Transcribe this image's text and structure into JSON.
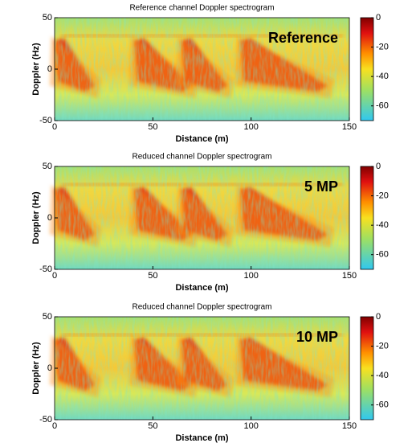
{
  "chart_data": [
    {
      "type": "heatmap",
      "title": "Reference channel Doppler spectrogram",
      "annotation": "Reference",
      "xlabel": "Distance (m)",
      "ylabel": "Doppler (Hz)",
      "xlim": [
        0,
        150
      ],
      "xticks": [
        0,
        50,
        100,
        150
      ],
      "ylim": [
        -50,
        50
      ],
      "yticks": [
        -50,
        0,
        50
      ],
      "clim": [
        -70,
        0
      ],
      "cticks": [
        0,
        -20,
        -40,
        -60
      ],
      "colormap": "jet"
    },
    {
      "type": "heatmap",
      "title": "Reduced channel Doppler spectrogram",
      "annotation": "5 MP",
      "xlabel": "Distance (m)",
      "ylabel": "Doppler (Hz)",
      "xlim": [
        0,
        150
      ],
      "xticks": [
        0,
        50,
        100,
        150
      ],
      "ylim": [
        -50,
        50
      ],
      "yticks": [
        -50,
        0,
        50
      ],
      "clim": [
        -70,
        0
      ],
      "cticks": [
        0,
        -20,
        -40,
        -60
      ],
      "colormap": "jet"
    },
    {
      "type": "heatmap",
      "title": "Reduced channel Doppler spectrogram",
      "annotation": "10 MP",
      "xlabel": "Distance (m)",
      "ylabel": "Doppler (Hz)",
      "xlim": [
        0,
        150
      ],
      "xticks": [
        0,
        50,
        100,
        150
      ],
      "ylim": [
        -50,
        50
      ],
      "yticks": [
        -50,
        0,
        50
      ],
      "clim": [
        -70,
        0
      ],
      "cticks": [
        0,
        -20,
        -40,
        -60
      ],
      "colormap": "jet"
    }
  ]
}
